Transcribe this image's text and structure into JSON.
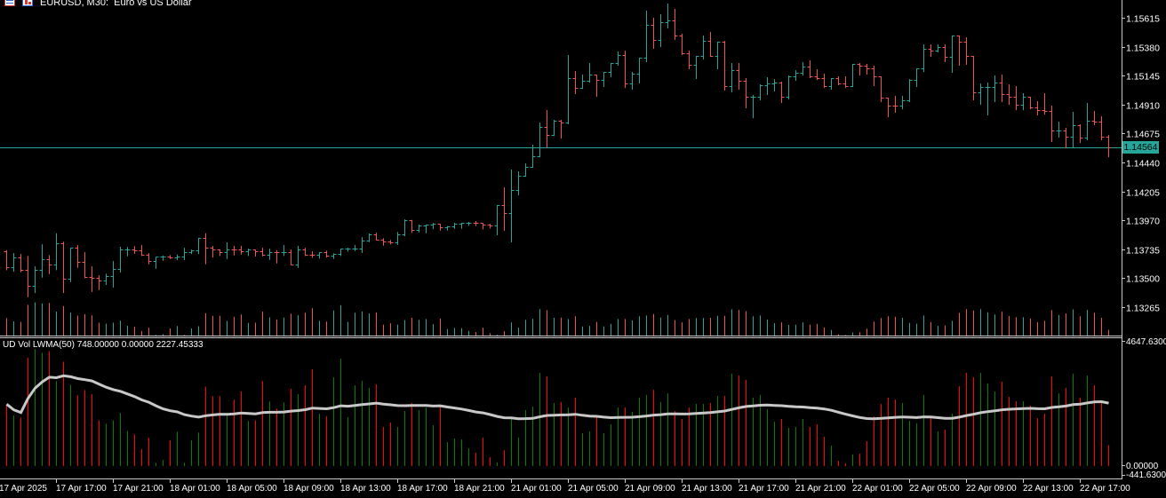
{
  "header": {
    "symbol_title": "EURUSD, M30:  Euro vs US Dollar",
    "icons": [
      "chart-window-icon",
      "symbol-icon"
    ]
  },
  "current_price": "1.14564",
  "indicator": {
    "label": "UD Vol LWMA(50) 748.00000 0.00000 2227.45333",
    "period": 50,
    "axis_labels": [
      "4647.63000",
      "0.00000",
      "-441.63000"
    ],
    "axis_max": 4647.63,
    "axis_min": -441.63
  },
  "colors": {
    "background": "#000000",
    "bull_bar": "#26a69a",
    "bear_bar": "#ef5350",
    "volume_up": "#008000",
    "volume_down": "#ff0000",
    "lwma_line": "#c8c8c8",
    "price_line": "#26a69a",
    "axis": "#c8c8c8",
    "text": "#ffffff"
  },
  "chart_data": {
    "type": "bar",
    "style": "ohlc",
    "price_axis": {
      "ticks": [
        "1.15615",
        "1.15380",
        "1.15145",
        "1.14910",
        "1.14675",
        "1.14440",
        "1.14205",
        "1.13970",
        "1.13735",
        "1.13500",
        "1.13265"
      ],
      "ylim": [
        1.13265,
        1.15615
      ]
    },
    "time_axis": {
      "ticks": [
        "17 Apr 2025",
        "17 Apr 17:00",
        "17 Apr 21:00",
        "18 Apr 01:00",
        "18 Apr 05:00",
        "18 Apr 09:00",
        "18 Apr 13:00",
        "18 Apr 17:00",
        "18 Apr 21:00",
        "21 Apr 01:00",
        "21 Apr 05:00",
        "21 Apr 09:00",
        "21 Apr 13:00",
        "21 Apr 17:00",
        "21 Apr 21:00",
        "22 Apr 01:00",
        "22 Apr 05:00",
        "22 Apr 09:00",
        "22 Apr 13:00",
        "22 Apr 17:00"
      ]
    },
    "first_open": 1.13721,
    "close": [
      1.13591,
      1.13666,
      1.13565,
      1.13435,
      1.13565,
      1.13652,
      1.13608,
      1.13784,
      1.13493,
      1.13745,
      1.1363,
      1.13507,
      1.13505,
      1.13479,
      1.13517,
      1.13574,
      1.13731,
      1.13731,
      1.13729,
      1.13688,
      1.13637,
      1.13673,
      1.13675,
      1.13666,
      1.13673,
      1.13711,
      1.13724,
      1.13827,
      1.13747,
      1.13731,
      1.13711,
      1.13733,
      1.13731,
      1.13719,
      1.13733,
      1.13716,
      1.13692,
      1.13711,
      1.13709,
      1.13711,
      1.13613,
      1.13731,
      1.13692,
      1.1369,
      1.13709,
      1.13685,
      1.13695,
      1.1374,
      1.1374,
      1.13742,
      1.13803,
      1.13858,
      1.13814,
      1.13796,
      1.13794,
      1.13856,
      1.13973,
      1.13889,
      1.1393,
      1.13932,
      1.13942,
      1.13915,
      1.13918,
      1.13942,
      1.13947,
      1.13949,
      1.13947,
      1.13935,
      1.13926,
      1.14094,
      1.14029,
      1.14216,
      1.14331,
      1.14404,
      1.1449,
      1.14728,
      1.14663,
      1.14778,
      1.14764,
      1.15125,
      1.15045,
      1.15103,
      1.15153,
      1.1511,
      1.15175,
      1.15247,
      1.15312,
      1.15081,
      1.15161,
      1.1529,
      1.15557,
      1.15435,
      1.15579,
      1.15593,
      1.15471,
      1.15326,
      1.15233,
      1.15305,
      1.15427,
      1.15305,
      1.1542,
      1.1506,
      1.15189,
      1.15103,
      1.14973,
      1.14973,
      1.15067,
      1.15081,
      1.15089,
      1.14973,
      1.15139,
      1.15168,
      1.15218,
      1.15139,
      1.15125,
      1.1506,
      1.15125,
      1.15081,
      1.1506,
      1.1524,
      1.15226,
      1.15204,
      1.15139,
      1.14966,
      1.14901,
      1.14898,
      1.14944,
      1.1511,
      1.15204,
      1.15362,
      1.15348,
      1.15377,
      1.15298,
      1.15471,
      1.1542,
      1.15305,
      1.15009,
      1.15052,
      1.15052,
      1.15089,
      1.14995,
      1.14973,
      1.14908,
      1.14973,
      1.14887,
      1.14865,
      1.14858,
      1.14699,
      1.14699,
      1.14649,
      1.14742,
      1.14641,
      1.14778,
      1.14771,
      1.14649,
      1.14564
    ],
    "high": [
      1.13728,
      1.13704,
      1.13697,
      1.1368,
      1.13596,
      1.13776,
      1.13688,
      1.13865,
      1.13796,
      1.13745,
      1.13769,
      1.13711,
      1.13596,
      1.13524,
      1.13536,
      1.13639,
      1.13755,
      1.13753,
      1.1376,
      1.13769,
      1.13704,
      1.13673,
      1.13685,
      1.13688,
      1.13692,
      1.13747,
      1.13733,
      1.13827,
      1.13865,
      1.13762,
      1.13735,
      1.13791,
      1.13762,
      1.13762,
      1.1374,
      1.13733,
      1.13747,
      1.1374,
      1.13728,
      1.13769,
      1.13733,
      1.13762,
      1.13747,
      1.13719,
      1.13711,
      1.13724,
      1.13702,
      1.1374,
      1.13747,
      1.13769,
      1.13834,
      1.13863,
      1.1387,
      1.13825,
      1.1381,
      1.13875,
      1.13978,
      1.13964,
      1.13935,
      1.13935,
      1.13949,
      1.13942,
      1.13923,
      1.13949,
      1.13949,
      1.13957,
      1.13964,
      1.13947,
      1.13942,
      1.14094,
      1.14238,
      1.14382,
      1.14368,
      1.14432,
      1.14584,
      1.14764,
      1.14865,
      1.14786,
      1.14786,
      1.15312,
      1.15182,
      1.15153,
      1.15247,
      1.15153,
      1.15175,
      1.15247,
      1.15341,
      1.15348,
      1.15175,
      1.1529,
      1.15673,
      1.15615,
      1.15644,
      1.1573,
      1.15687,
      1.15485,
      1.15348,
      1.15305,
      1.15471,
      1.15499,
      1.1542,
      1.15427,
      1.15247,
      1.15247,
      1.15125,
      1.14988,
      1.15074,
      1.15132,
      1.15117,
      1.15096,
      1.15146,
      1.15189,
      1.15254,
      1.15269,
      1.15197,
      1.15161,
      1.15125,
      1.15139,
      1.15139,
      1.1524,
      1.15247,
      1.1524,
      1.15226,
      1.15139,
      1.14966,
      1.1498,
      1.1498,
      1.15117,
      1.15204,
      1.15399,
      1.15399,
      1.15399,
      1.15399,
      1.15471,
      1.15471,
      1.15456,
      1.15305,
      1.15081,
      1.15089,
      1.15146,
      1.15153,
      1.15074,
      1.1506,
      1.15002,
      1.14973,
      1.14937,
      1.15002,
      1.14901,
      1.14771,
      1.14721,
      1.14851,
      1.1475,
      1.14923,
      1.14858,
      1.14815,
      1.14663
    ],
    "low": [
      1.13572,
      1.1356,
      1.13555,
      1.13353,
      1.13387,
      1.13512,
      1.13541,
      1.13572,
      1.13387,
      1.13476,
      1.13591,
      1.13507,
      1.13396,
      1.13411,
      1.13452,
      1.13432,
      1.13553,
      1.13685,
      1.13706,
      1.13688,
      1.1362,
      1.13584,
      1.13649,
      1.13663,
      1.13654,
      1.13654,
      1.13704,
      1.13704,
      1.1362,
      1.13675,
      1.13688,
      1.13663,
      1.13692,
      1.13699,
      1.13688,
      1.13683,
      1.13685,
      1.13656,
      1.13627,
      1.13688,
      1.13613,
      1.13591,
      1.13688,
      1.13673,
      1.13666,
      1.13675,
      1.13663,
      1.13688,
      1.13724,
      1.13728,
      1.13713,
      1.138,
      1.13814,
      1.13771,
      1.13781,
      1.13778,
      1.13848,
      1.13875,
      1.13879,
      1.13872,
      1.13906,
      1.13894,
      1.13894,
      1.13908,
      1.13908,
      1.13933,
      1.1393,
      1.13904,
      1.13911,
      1.13856,
      1.13892,
      1.13798,
      1.1418,
      1.14331,
      1.14404,
      1.1449,
      1.14569,
      1.14663,
      1.14641,
      1.14757,
      1.15002,
      1.15045,
      1.15096,
      1.1498,
      1.1506,
      1.15139,
      1.15233,
      1.15052,
      1.15038,
      1.15089,
      1.15262,
      1.1537,
      1.15384,
      1.15536,
      1.15442,
      1.15319,
      1.15204,
      1.15125,
      1.15283,
      1.15305,
      1.15204,
      1.15031,
      1.15016,
      1.15038,
      1.14887,
      1.14807,
      1.14952,
      1.14995,
      1.15024,
      1.1493,
      1.14959,
      1.1511,
      1.15153,
      1.15132,
      1.15117,
      1.15052,
      1.15038,
      1.15074,
      1.15052,
      1.1506,
      1.15153,
      1.15161,
      1.15067,
      1.14937,
      1.14815,
      1.14851,
      1.14879,
      1.14937,
      1.1506,
      1.15182,
      1.15305,
      1.15341,
      1.15262,
      1.15175,
      1.15233,
      1.1524,
      1.14952,
      1.14915,
      1.14829,
      1.14937,
      1.14937,
      1.14915,
      1.14872,
      1.14872,
      1.14879,
      1.14829,
      1.14836,
      1.14613,
      1.14649,
      1.14562,
      1.14569,
      1.14605,
      1.14627,
      1.1475,
      1.14627,
      1.1449
    ],
    "volume": [
      2280,
      1860,
      1780,
      4017,
      4340,
      4200,
      4270,
      3140,
      3870,
      3010,
      2610,
      2810,
      2650,
      1680,
      1550,
      1680,
      1950,
      1280,
      1150,
      600,
      1020,
      90,
      190,
      930,
      1250,
      90,
      930,
      1220,
      2940,
      2580,
      2580,
      1920,
      2450,
      2760,
      1650,
      1680,
      3140,
      2380,
      2110,
      2350,
      2856,
      2657,
      2989,
      3587,
      1926,
      1827,
      3288,
      3985,
      1793,
      2989,
      3155,
      2889,
      3022,
      1428,
      1594,
      1428,
      2026,
      2325,
      2059,
      2159,
      1494,
      2225,
      863,
      996,
      963,
      631,
      465,
      1030,
      299,
      100,
      565,
      1727,
      1030,
      2059,
      2192,
      3454,
      3321,
      2325,
      2358,
      2159,
      2524,
      1196,
      1262,
      1793,
      1196,
      1528,
      2159,
      2159,
      1993,
      2524,
      2624,
      2823,
      2358,
      2690,
      2026,
      1727,
      2159,
      2291,
      2291,
      2325,
      2590,
      2590,
      3421,
      3354,
      3188,
      2524,
      2624,
      2092,
      1627,
      1727,
      1395,
      1428,
      1727,
      1428,
      1528,
      1063,
      731,
      166,
      66,
      399,
      432,
      897,
      1827,
      2291,
      2524,
      2458,
      2325,
      1661,
      1561,
      2624,
      1760,
      1262,
      1328,
      1926,
      2956,
      3454,
      3288,
      3454,
      3055,
      2756,
      3122,
      2557,
      2391,
      2391,
      2225,
      1760,
      1926,
      3321,
      2690,
      2889,
      3421,
      2524,
      3354,
      2989,
      2325,
      748
    ]
  }
}
